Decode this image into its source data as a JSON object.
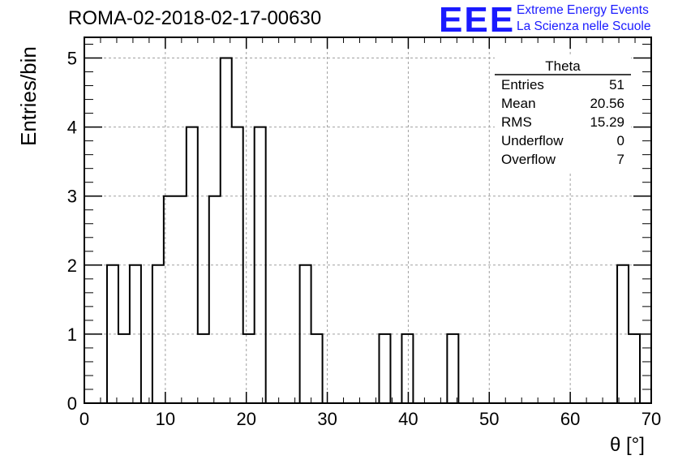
{
  "header": {
    "run_title": "ROMA-02-2018-02-17-00630",
    "logo_mark": "EEE",
    "logo_line1": "Extreme Energy Events",
    "logo_line2": "La Scienza nelle Scuole"
  },
  "colors": {
    "logo": "#1a1aff",
    "histogram_line": "#000000",
    "grid": "#a0a0a0"
  },
  "stats_box": {
    "title": "Theta",
    "rows": [
      {
        "label": "Entries",
        "value": "51"
      },
      {
        "label": "Mean",
        "value": "20.56"
      },
      {
        "label": "RMS",
        "value": "15.29"
      },
      {
        "label": "Underflow",
        "value": "0"
      },
      {
        "label": "Overflow",
        "value": "7"
      }
    ]
  },
  "chart_data": {
    "type": "histogram",
    "title": "ROMA-02-2018-02-17-00630",
    "xlabel": "θ [°]",
    "ylabel": "Entries/bin",
    "xlim": [
      0,
      70
    ],
    "ylim": [
      0,
      5.3
    ],
    "bin_width": 1.4,
    "x_ticks": [
      0,
      10,
      20,
      30,
      40,
      50,
      60,
      70
    ],
    "y_ticks": [
      0,
      1,
      2,
      3,
      4,
      5
    ],
    "grid": true,
    "counts": [
      0,
      0,
      2,
      1,
      2,
      0,
      2,
      3,
      3,
      4,
      1,
      3,
      5,
      4,
      1,
      4,
      0,
      0,
      0,
      2,
      1,
      0,
      0,
      0,
      0,
      0,
      1,
      0,
      1,
      0,
      0,
      0,
      1,
      0,
      0,
      0,
      0,
      0,
      0,
      0,
      0,
      0,
      0,
      0,
      0,
      0,
      0,
      2,
      1,
      0
    ]
  }
}
